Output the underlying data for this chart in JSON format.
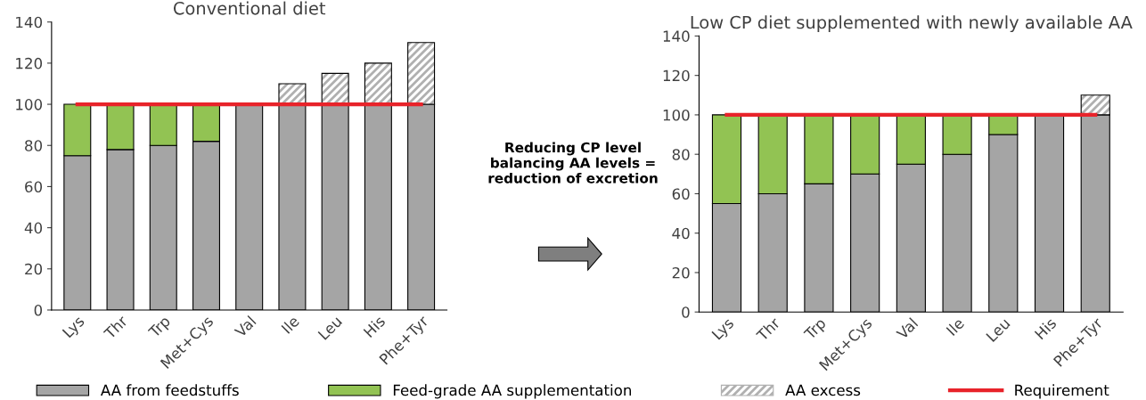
{
  "chart_data": [
    {
      "type": "bar",
      "title": "Conventional diet",
      "stacked": true,
      "legend": "bottom",
      "grid": false,
      "categories": [
        "Lys",
        "Thr",
        "Trp",
        "Met+Cys",
        "Val",
        "Ile",
        "Leu",
        "His",
        "Phe+Tyr"
      ],
      "series": [
        {
          "name": "AA from feedstuffs",
          "color": "#a5a5a5",
          "values": [
            75,
            78,
            80,
            82,
            100,
            100,
            100,
            100,
            100
          ]
        },
        {
          "name": "Feed-grade AA supplementation",
          "color": "#92c353",
          "values": [
            25,
            22,
            20,
            18,
            null,
            null,
            null,
            null,
            null
          ]
        },
        {
          "name": "AA excess",
          "color": "#ffffff",
          "values": [
            null,
            null,
            null,
            null,
            null,
            10,
            15,
            20,
            30
          ]
        },
        {
          "name": "Requirement",
          "type": "line",
          "color": "#e8232a",
          "values": [
            100,
            100,
            100,
            100,
            100,
            100,
            100,
            100,
            100
          ]
        }
      ],
      "ylim": [
        0,
        140
      ],
      "yticks": [
        0,
        20,
        40,
        60,
        80,
        100,
        120,
        140
      ],
      "annotations": [
        "Reducing CP level\nbalancing AA levels =\nreduction of excretion"
      ]
    },
    {
      "type": "bar",
      "title": "Low CP diet supplemented with newly available AA",
      "stacked": true,
      "grid": false,
      "categories": [
        "Lys",
        "Thr",
        "Trp",
        "Met+Cys",
        "Val",
        "Ile",
        "Leu",
        "His",
        "Phe+Tyr"
      ],
      "series": [
        {
          "color": "#a5a5a5",
          "values": [
            55,
            60,
            65,
            70,
            75,
            80,
            90,
            100,
            100
          ]
        },
        {
          "color": "#92c353",
          "values": [
            45,
            40,
            35,
            30,
            25,
            20,
            10,
            null,
            null
          ]
        },
        {
          "color": "#ffffff",
          "values": [
            null,
            null,
            null,
            null,
            null,
            null,
            null,
            null,
            10
          ]
        },
        {
          "type": "line",
          "color": "#e8232a",
          "values": [
            100,
            100,
            100,
            100,
            100,
            100,
            100,
            100,
            100
          ]
        }
      ],
      "ylim": [
        0,
        140
      ],
      "yticks": [
        0,
        20,
        40,
        60,
        80,
        100,
        120,
        140
      ]
    }
  ]
}
